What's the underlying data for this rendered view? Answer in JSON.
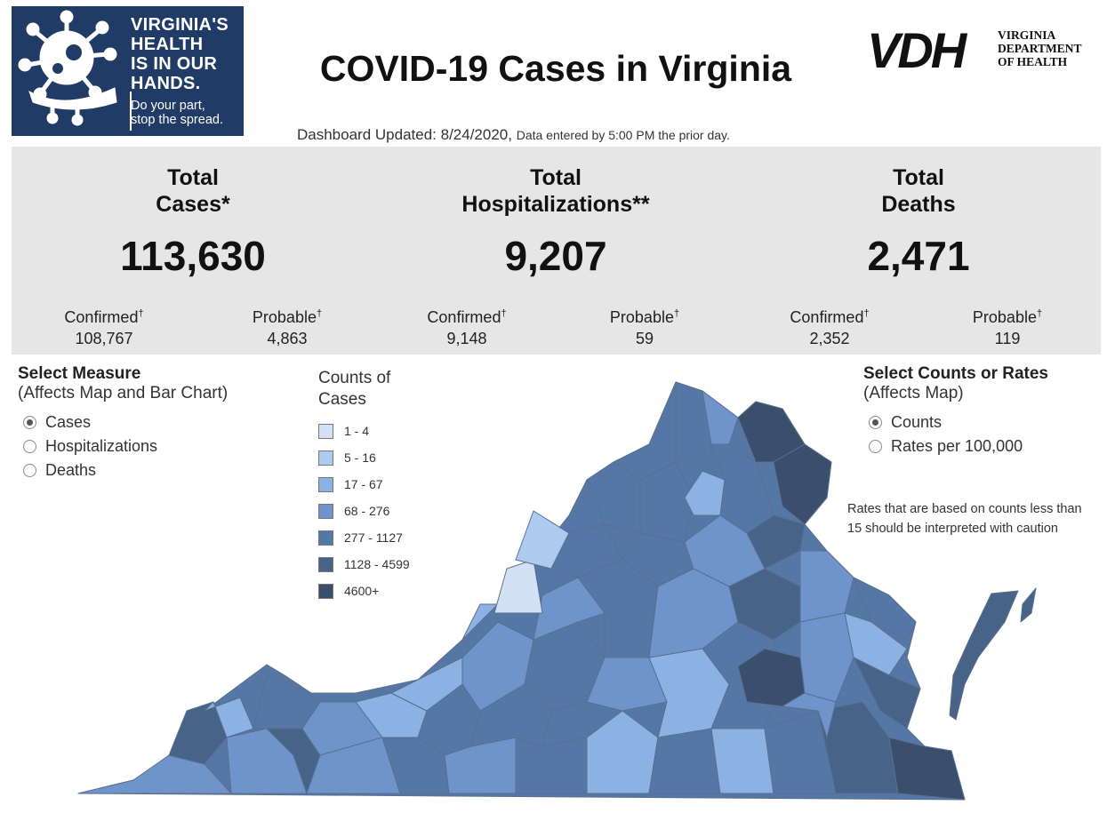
{
  "logo": {
    "lines": [
      "VIRGINIA'S",
      "HEALTH",
      "IS IN OUR",
      "HANDS."
    ],
    "tagline": [
      "Do your part,",
      "stop the spread."
    ]
  },
  "title": "COVID-19 Cases in Virginia",
  "vdh": {
    "letters": "VDH",
    "dept": [
      "VIRGINIA",
      "DEPARTMENT",
      "OF HEALTH"
    ]
  },
  "updated": {
    "main": "Dashboard Updated: 8/24/2020,",
    "note": "Data entered by 5:00 PM the prior day."
  },
  "stats": [
    {
      "head1": "Total",
      "head2": "Cases*",
      "value": "113,630",
      "confirmed_label": "Confirmed",
      "confirmed": "108,767",
      "probable_label": "Probable",
      "probable": "4,863"
    },
    {
      "head1": "Total",
      "head2": "Hospitalizations**",
      "value": "9,207",
      "confirmed_label": "Confirmed",
      "confirmed": "9,148",
      "probable_label": "Probable",
      "probable": "59"
    },
    {
      "head1": "Total",
      "head2": "Deaths",
      "value": "2,471",
      "confirmed_label": "Confirmed",
      "confirmed": "2,352",
      "probable_label": "Probable",
      "probable": "119"
    }
  ],
  "dagger": "†",
  "measure": {
    "title": "Select Measure",
    "subtitle": "(Affects Map and Bar Chart)",
    "options": [
      "Cases",
      "Hospitalizations",
      "Deaths"
    ],
    "selected": "Cases"
  },
  "legend": {
    "title1": "Counts of",
    "title2": "Cases",
    "items": [
      {
        "label": "1 - 4",
        "color": "#d2e2f4"
      },
      {
        "label": "5 - 16",
        "color": "#adcbef"
      },
      {
        "label": "17 - 67",
        "color": "#8cb1e3"
      },
      {
        "label": "68 - 276",
        "color": "#6e94cb"
      },
      {
        "label": "277 - 1127",
        "color": "#5577a6"
      },
      {
        "label": "1128 - 4599",
        "color": "#486388"
      },
      {
        "label": "4600+",
        "color": "#3a4f6e"
      }
    ]
  },
  "rates": {
    "title": "Select Counts or Rates",
    "subtitle": "(Affects Map)",
    "options": [
      "Counts",
      "Rates per 100,000"
    ],
    "selected": "Counts"
  },
  "caution": "Rates that are based on counts less than 15 should be interpreted with caution"
}
